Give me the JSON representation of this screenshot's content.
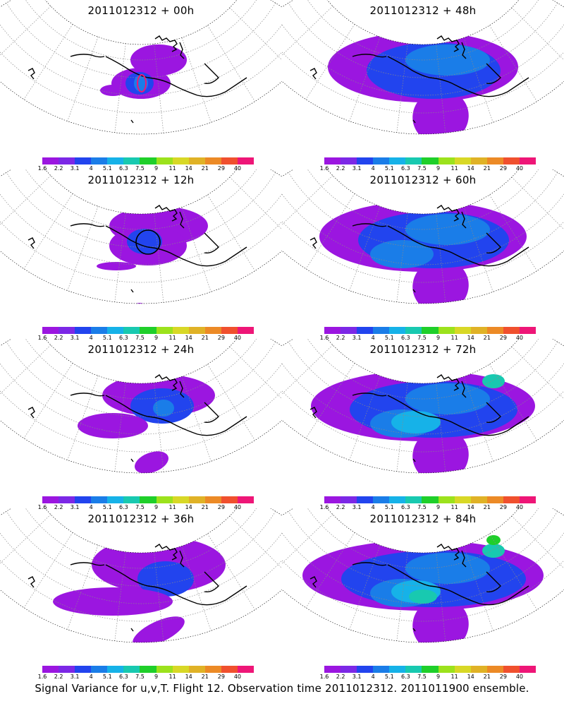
{
  "caption": "Signal Variance for u,v,T. Flight 12. Observation time 2011012312. 2011011900 ensemble.",
  "colorbar": {
    "labels": [
      "1.6",
      "2.2",
      "3.1",
      "4",
      "5.1",
      "6.3",
      "7.5",
      "9",
      "11",
      "14",
      "21",
      "29",
      "40"
    ],
    "colors": [
      "#9b16e0",
      "#7c28e6",
      "#2244ee",
      "#1a7de8",
      "#16b2e8",
      "#18c9b0",
      "#1fcf2a",
      "#9ce21c",
      "#d8d826",
      "#e0b226",
      "#ec8a26",
      "#f0502e",
      "#ee1677"
    ]
  },
  "map_colors": {
    "outline": "#000000",
    "grid": "#8a8a8a",
    "coast": "#000000",
    "highlight": "#ee1677"
  },
  "panels": [
    {
      "title": "2011012312 + 00h",
      "level": 0
    },
    {
      "title": "2011012312 + 48h",
      "level": 4
    },
    {
      "title": "2011012312 + 12h",
      "level": 1
    },
    {
      "title": "2011012312 + 60h",
      "level": 5
    },
    {
      "title": "2011012312 + 24h",
      "level": 2
    },
    {
      "title": "2011012312 + 72h",
      "level": 6
    },
    {
      "title": "2011012312 + 36h",
      "level": 3
    },
    {
      "title": "2011012312 + 84h",
      "level": 7
    }
  ]
}
